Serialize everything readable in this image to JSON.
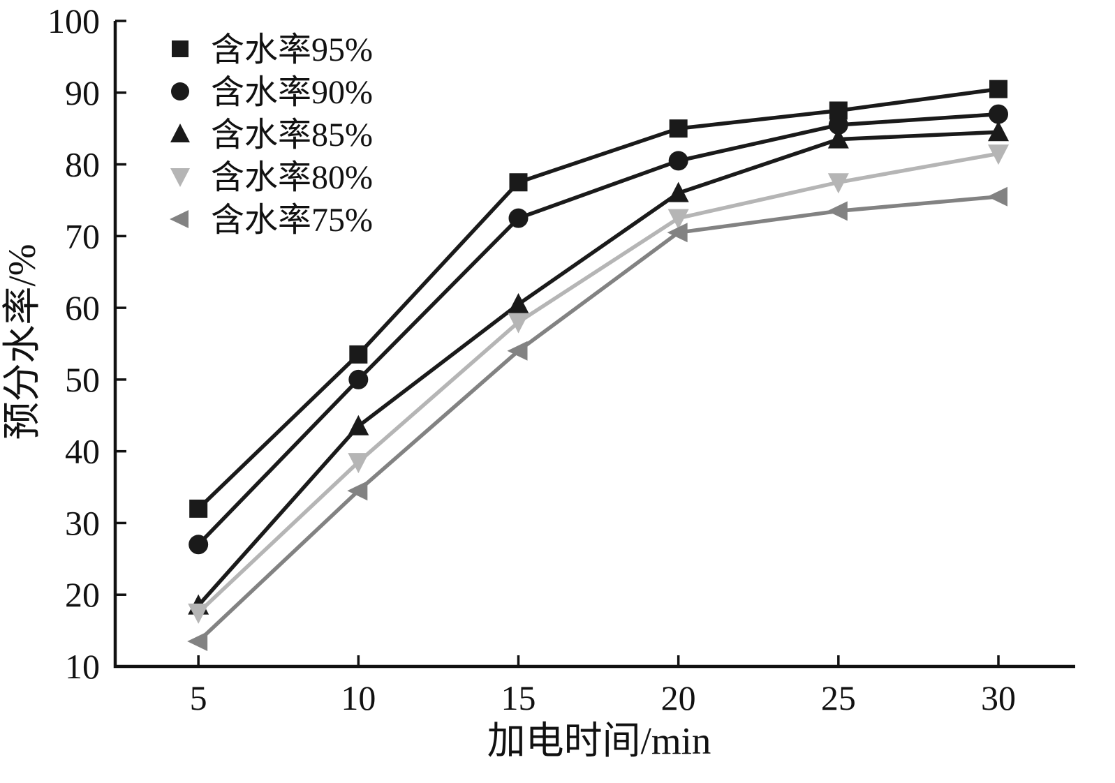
{
  "chart_data": {
    "type": "line",
    "title": "",
    "xlabel": "加电时间/min",
    "ylabel": "预分水率/%",
    "x": [
      5,
      10,
      15,
      20,
      25,
      30
    ],
    "xticks": [
      5,
      10,
      15,
      20,
      25,
      30
    ],
    "yticks": [
      10,
      20,
      30,
      40,
      50,
      60,
      70,
      80,
      90,
      100
    ],
    "xlim": [
      2.4,
      32.4
    ],
    "ylim": [
      10,
      100
    ],
    "grid": false,
    "legend_position": "top-left",
    "series": [
      {
        "key": "moisture-95",
        "name": "含水率95%",
        "marker": "square",
        "color": "#1a1a1a",
        "values": [
          32,
          53.5,
          77.5,
          85,
          87.5,
          90.5
        ]
      },
      {
        "key": "moisture-90",
        "name": "含水率90%",
        "marker": "circle",
        "color": "#1a1a1a",
        "values": [
          27,
          50,
          72.5,
          80.5,
          85.5,
          87
        ]
      },
      {
        "key": "moisture-85",
        "name": "含水率85%",
        "marker": "triangle-up",
        "color": "#1a1a1a",
        "values": [
          18.5,
          43.5,
          60.5,
          76,
          83.5,
          84.5
        ]
      },
      {
        "key": "moisture-80",
        "name": "含水率80%",
        "marker": "triangle-down",
        "color": "#b5b5b5",
        "values": [
          17.5,
          38.5,
          58,
          72.5,
          77.5,
          81.5
        ]
      },
      {
        "key": "moisture-75",
        "name": "含水率75%",
        "marker": "triangle-left",
        "color": "#828282",
        "values": [
          13.5,
          34.5,
          54,
          70.5,
          73.5,
          75.5
        ]
      }
    ]
  }
}
